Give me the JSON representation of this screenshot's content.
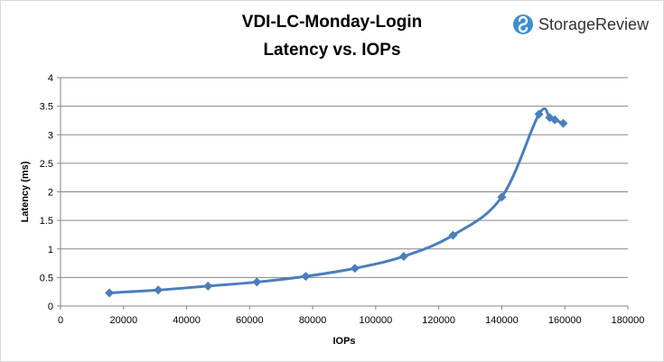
{
  "brand": {
    "name": "StorageReview",
    "icon": "storagereview-logo-icon",
    "accent": "#3d8fd1"
  },
  "chart_data": {
    "type": "line",
    "title_lines": [
      "VDI-LC-Monday-Login",
      "Latency vs. IOPs"
    ],
    "xlabel": "IOPs",
    "ylabel": "Latency (ms)",
    "xlim": [
      0,
      180000
    ],
    "ylim": [
      0,
      4
    ],
    "x_ticks": [
      "0",
      "20000",
      "40000",
      "60000",
      "80000",
      "100000",
      "120000",
      "140000",
      "160000",
      "180000"
    ],
    "y_ticks": [
      "0",
      "0.5",
      "1",
      "1.5",
      "2",
      "2.5",
      "3",
      "3.5",
      "4"
    ],
    "grid": "horizontal",
    "smooth": true,
    "marker": "diamond",
    "color": "#4a7ebb",
    "series": [
      {
        "points": [
          [
            15500,
            0.23
          ],
          [
            31000,
            0.28
          ],
          [
            46800,
            0.35
          ],
          [
            62300,
            0.42
          ],
          [
            77800,
            0.52
          ],
          [
            93400,
            0.66
          ],
          [
            108900,
            0.87
          ],
          [
            124500,
            1.24
          ],
          [
            140000,
            1.91
          ],
          [
            151800,
            3.36
          ],
          [
            155200,
            3.3
          ],
          [
            156800,
            3.26
          ],
          [
            159500,
            3.2
          ]
        ]
      }
    ]
  }
}
